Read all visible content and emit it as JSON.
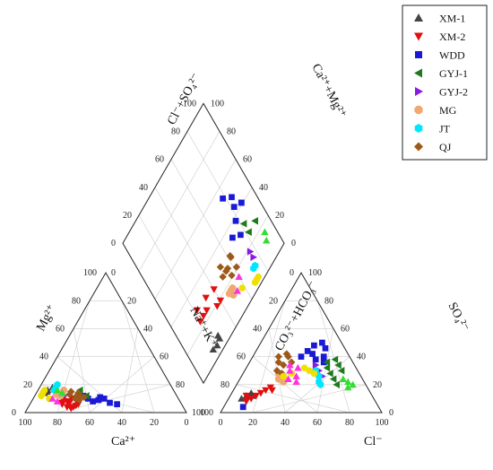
{
  "chart_data": {
    "type": "scatter",
    "subtype": "piper-diagram",
    "series": [
      {
        "name": "XM-1",
        "color": "#444444",
        "marker": "triangle-up",
        "cation": [
          [
            16,
            78,
            6
          ],
          [
            14,
            81,
            5
          ],
          [
            18,
            74,
            8
          ],
          [
            15,
            79,
            6
          ]
        ],
        "anion": [
          [
            8,
            10,
            82
          ],
          [
            10,
            12,
            78
          ],
          [
            12,
            14,
            74
          ],
          [
            14,
            12,
            74
          ]
        ]
      },
      {
        "name": "XM-2",
        "color": "#e01010",
        "marker": "triangle-down",
        "cation": [
          [
            6,
            70,
            24
          ],
          [
            4,
            72,
            24
          ],
          [
            8,
            68,
            24
          ],
          [
            5,
            66,
            29
          ],
          [
            7,
            74,
            19
          ],
          [
            3,
            70,
            27
          ],
          [
            6,
            64,
            30
          ],
          [
            9,
            72,
            19
          ],
          [
            4,
            68,
            28
          ],
          [
            10,
            66,
            24
          ],
          [
            6,
            74,
            20
          ],
          [
            8,
            70,
            22
          ]
        ],
        "anion": [
          [
            12,
            8,
            80
          ],
          [
            14,
            10,
            76
          ],
          [
            16,
            12,
            72
          ],
          [
            18,
            14,
            68
          ],
          [
            20,
            16,
            64
          ],
          [
            22,
            18,
            60
          ],
          [
            10,
            12,
            78
          ],
          [
            24,
            16,
            60
          ]
        ]
      },
      {
        "name": "WDD",
        "color": "#1a1ad6",
        "marker": "square",
        "cation": [
          [
            10,
            56,
            34
          ],
          [
            12,
            58,
            30
          ],
          [
            8,
            54,
            38
          ],
          [
            6,
            40,
            54
          ],
          [
            9,
            50,
            41
          ],
          [
            11,
            48,
            41
          ],
          [
            7,
            44,
            49
          ],
          [
            10,
            46,
            44
          ]
        ],
        "anion": [
          [
            30,
            40,
            30
          ],
          [
            32,
            44,
            24
          ],
          [
            36,
            42,
            22
          ],
          [
            40,
            38,
            22
          ],
          [
            42,
            46,
            12
          ],
          [
            38,
            50,
            12
          ],
          [
            44,
            40,
            16
          ],
          [
            46,
            36,
            18
          ],
          [
            34,
            48,
            18
          ],
          [
            12,
            4,
            84
          ]
        ]
      },
      {
        "name": "GYJ-1",
        "color": "#1e7a1e",
        "marker": "triangle-left",
        "cation": [
          [
            12,
            62,
            26
          ],
          [
            14,
            60,
            26
          ],
          [
            10,
            64,
            26
          ],
          [
            16,
            58,
            26
          ],
          [
            12,
            56,
            32
          ]
        ],
        "anion": [
          [
            62,
            20,
            18
          ],
          [
            58,
            24,
            18
          ],
          [
            60,
            30,
            10
          ],
          [
            56,
            34,
            10
          ],
          [
            54,
            28,
            18
          ],
          [
            52,
            38,
            10
          ],
          [
            50,
            32,
            18
          ],
          [
            48,
            36,
            16
          ]
        ]
      },
      {
        "name": "GYJ-2",
        "color": "#8a1ae0",
        "marker": "triangle-right",
        "cation": [
          [
            14,
            72,
            14
          ],
          [
            12,
            70,
            18
          ]
        ],
        "anion": [
          [
            50,
            26,
            24
          ],
          [
            46,
            30,
            24
          ],
          [
            42,
            34,
            24
          ]
        ]
      },
      {
        "name": "MG",
        "color": "#f0a870",
        "marker": "octagon",
        "cation": [
          [
            14,
            70,
            16
          ],
          [
            12,
            72,
            16
          ],
          [
            16,
            68,
            16
          ],
          [
            13,
            74,
            13
          ]
        ],
        "anion": [
          [
            24,
            24,
            52
          ],
          [
            26,
            26,
            48
          ],
          [
            22,
            28,
            50
          ],
          [
            28,
            22,
            50
          ]
        ]
      },
      {
        "name": "JT",
        "color": "#00e6ff",
        "marker": "hexagon",
        "cation": [
          [
            18,
            72,
            10
          ],
          [
            16,
            74,
            10
          ],
          [
            20,
            70,
            10
          ]
        ],
        "anion": [
          [
            48,
            26,
            26
          ],
          [
            50,
            22,
            28
          ],
          [
            44,
            30,
            26
          ],
          [
            52,
            20,
            28
          ]
        ]
      },
      {
        "name": "QJ",
        "color": "#9c5a1a",
        "marker": "diamond",
        "cation": [
          [
            12,
            62,
            26
          ],
          [
            10,
            64,
            26
          ],
          [
            14,
            60,
            26
          ],
          [
            11,
            58,
            31
          ],
          [
            13,
            66,
            21
          ],
          [
            9,
            62,
            29
          ],
          [
            15,
            64,
            21
          ],
          [
            12,
            60,
            28
          ]
        ],
        "anion": [
          [
            20,
            30,
            50
          ],
          [
            22,
            34,
            44
          ],
          [
            18,
            36,
            46
          ],
          [
            24,
            28,
            48
          ],
          [
            16,
            40,
            44
          ],
          [
            26,
            36,
            38
          ],
          [
            20,
            42,
            38
          ],
          [
            22,
            40,
            38
          ]
        ]
      },
      {
        "name": "",
        "color": "#f0e000",
        "marker": "circle",
        "cation": [
          [
            14,
            82,
            4
          ],
          [
            12,
            84,
            4
          ],
          [
            16,
            80,
            4
          ],
          [
            10,
            80,
            10
          ]
        ],
        "anion": [
          [
            40,
            30,
            30
          ],
          [
            44,
            28,
            28
          ],
          [
            36,
            32,
            32
          ],
          [
            30,
            28,
            42
          ],
          [
            26,
            26,
            48
          ]
        ]
      },
      {
        "name": "",
        "color": "#ff33dd",
        "marker": "triangle-up",
        "cation": [
          [
            10,
            78,
            12
          ],
          [
            8,
            76,
            16
          ]
        ],
        "anion": [
          [
            30,
            24,
            46
          ],
          [
            34,
            26,
            40
          ],
          [
            28,
            30,
            42
          ],
          [
            32,
            32,
            36
          ],
          [
            26,
            34,
            40
          ],
          [
            36,
            22,
            42
          ]
        ]
      },
      {
        "name": "",
        "color": "#33dd33",
        "marker": "triangle-up",
        "cation": [
          [
            14,
            70,
            16
          ],
          [
            16,
            72,
            12
          ]
        ],
        "anion": [
          [
            72,
            20,
            8
          ],
          [
            68,
            22,
            10
          ],
          [
            64,
            24,
            12
          ],
          [
            70,
            18,
            12
          ]
        ]
      }
    ],
    "cation_triangle": {
      "xlabel": "Ca²⁺",
      "left_label": "Mg²⁺",
      "right_label": "Na⁺+K⁺"
    },
    "anion_triangle": {
      "xlabel": "Cl⁻",
      "left_label": "CO₃²⁻+HCO₃⁻",
      "right_label": "SO₄²⁻"
    },
    "diamond": {
      "left_label": "Cl⁻+SO₄²⁻",
      "right_label": "Ca²⁺+Mg²⁺"
    },
    "ticks": [
      0,
      20,
      40,
      60,
      80,
      100
    ],
    "legend_position": "top-right",
    "grid": true
  }
}
